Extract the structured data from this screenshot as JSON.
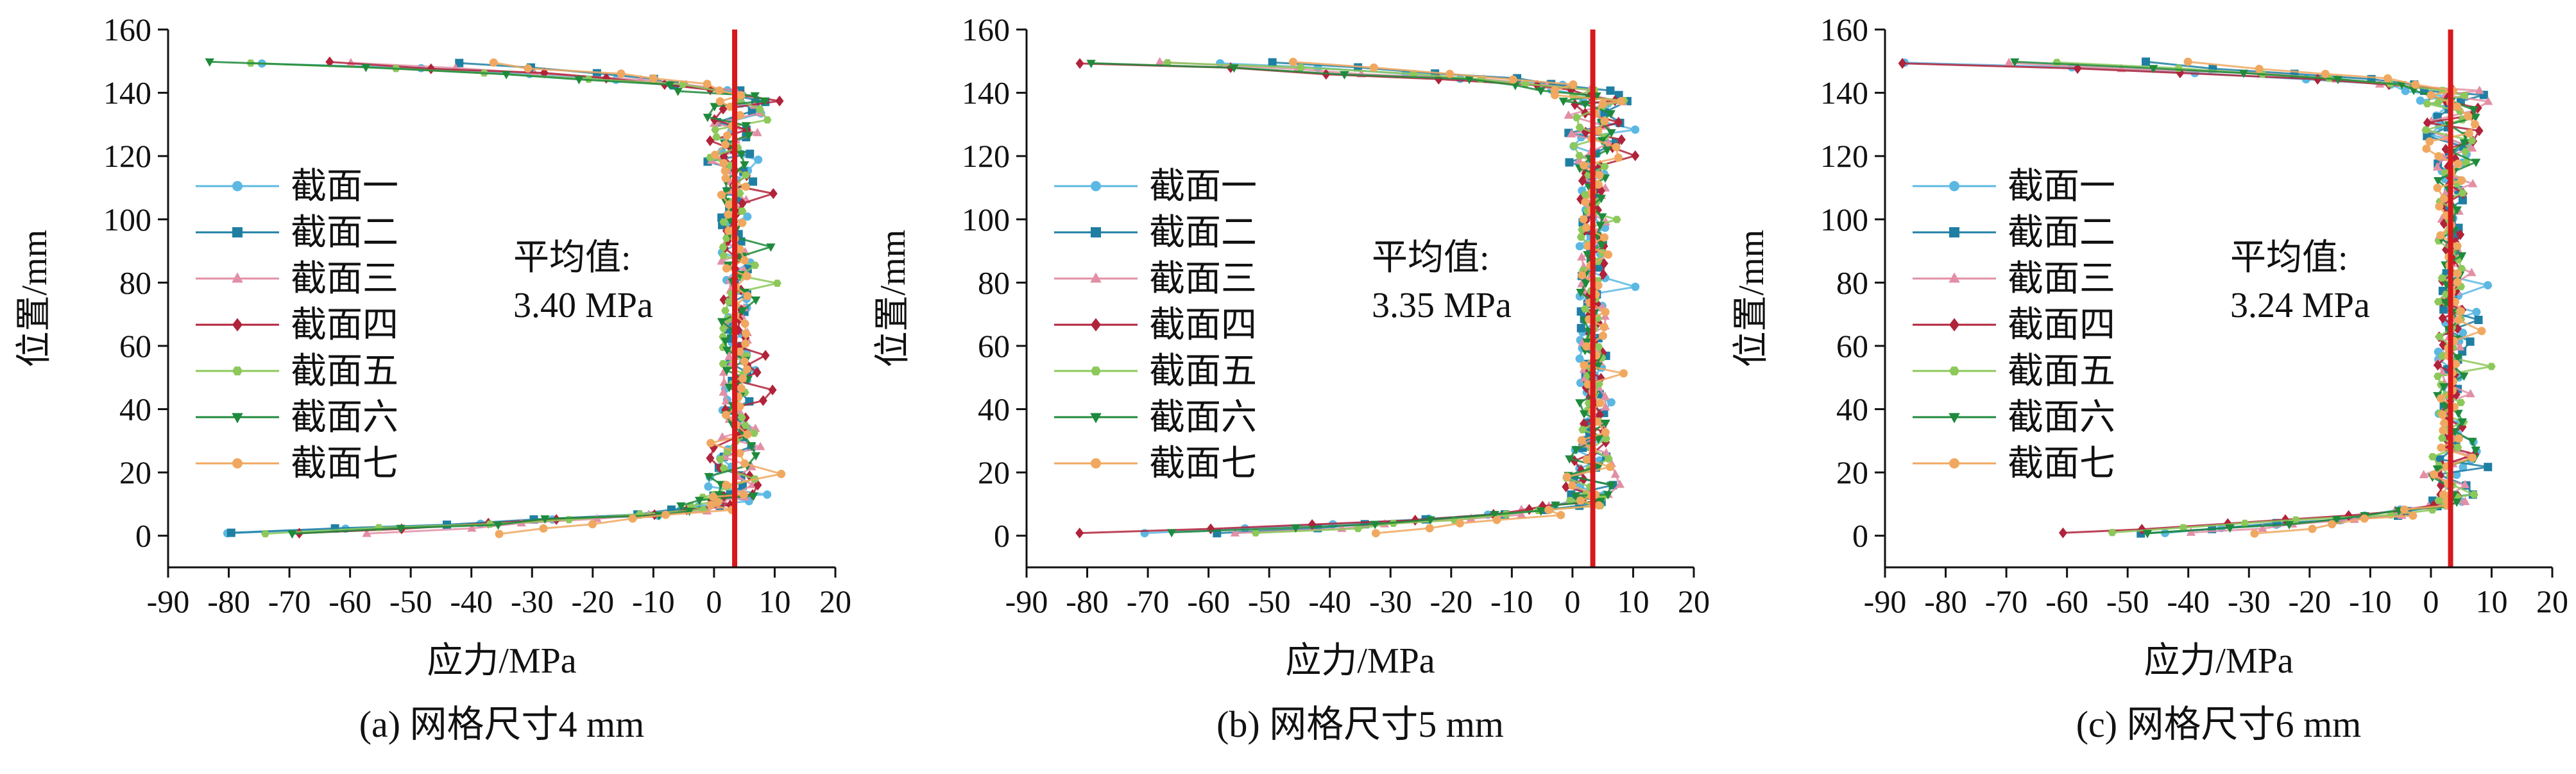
{
  "chart_data": [
    {
      "type": "scatter",
      "caption": "(a) 网格尺寸4 mm",
      "xlabel": "应力/MPa",
      "ylabel": "位置/mm",
      "xlim": [
        -90,
        20
      ],
      "ylim": [
        -10,
        160
      ],
      "xticks": [
        -90,
        -80,
        -70,
        -60,
        -50,
        -40,
        -30,
        -20,
        -10,
        0,
        10,
        20
      ],
      "yticks": [
        0,
        20,
        40,
        60,
        80,
        100,
        120,
        140,
        160
      ],
      "annotation": {
        "line1": "平均值:",
        "line2": "3.40 MPa"
      },
      "mean_line": 3.4,
      "legend_position": "left",
      "series": [
        {
          "name": "截面一",
          "color": "#5bb8e3",
          "marker": "circle"
        },
        {
          "name": "截面二",
          "color": "#1f7fa3",
          "marker": "square"
        },
        {
          "name": "截面三",
          "color": "#e28fa6",
          "marker": "triangle"
        },
        {
          "name": "截面四",
          "color": "#b0233a",
          "marker": "diamond"
        },
        {
          "name": "截面五",
          "color": "#8cc85a",
          "marker": "hexagon"
        },
        {
          "name": "截面六",
          "color": "#1e8a3c",
          "marker": "triangle-down"
        },
        {
          "name": "截面七",
          "color": "#f0a860",
          "marker": "circle"
        }
      ],
      "top_edge_min_stress": [
        -75,
        -42,
        -60,
        -62,
        -78,
        -80,
        -40
      ],
      "bottom_edge_min_stress": [
        -78,
        -82,
        -55,
        -68,
        -72,
        -70,
        -38
      ]
    },
    {
      "type": "scatter",
      "caption": "(b) 网格尺寸5 mm",
      "xlabel": "应力/MPa",
      "ylabel": "位置/mm",
      "xlim": [
        -90,
        20
      ],
      "ylim": [
        -10,
        160
      ],
      "xticks": [
        -90,
        -80,
        -70,
        -60,
        -50,
        -40,
        -30,
        -20,
        -10,
        0,
        10,
        20
      ],
      "yticks": [
        0,
        20,
        40,
        60,
        80,
        100,
        120,
        140,
        160
      ],
      "annotation": {
        "line1": "平均值:",
        "line2": "3.35 MPa"
      },
      "mean_line": 3.35,
      "legend_position": "left",
      "series": [
        {
          "name": "截面一",
          "color": "#5bb8e3",
          "marker": "circle"
        },
        {
          "name": "截面二",
          "color": "#1f7fa3",
          "marker": "square"
        },
        {
          "name": "截面三",
          "color": "#e28fa6",
          "marker": "triangle"
        },
        {
          "name": "截面四",
          "color": "#b0233a",
          "marker": "diamond"
        },
        {
          "name": "截面五",
          "color": "#8cc85a",
          "marker": "hexagon"
        },
        {
          "name": "截面六",
          "color": "#1e8a3c",
          "marker": "triangle-down"
        },
        {
          "name": "截面七",
          "color": "#f0a860",
          "marker": "circle"
        }
      ],
      "top_edge_min_stress": [
        -60,
        -50,
        -70,
        -84,
        -65,
        -76,
        -45
      ],
      "bottom_edge_min_stress": [
        -70,
        -60,
        -55,
        -80,
        -50,
        -65,
        -30
      ]
    },
    {
      "type": "scatter",
      "caption": "(c) 网格尺寸6 mm",
      "xlabel": "应力/MPa",
      "ylabel": "位置/mm",
      "xlim": [
        -90,
        20
      ],
      "ylim": [
        -10,
        160
      ],
      "xticks": [
        -90,
        -80,
        -70,
        -60,
        -50,
        -40,
        -30,
        -20,
        -10,
        0,
        10,
        20
      ],
      "yticks": [
        0,
        20,
        40,
        60,
        80,
        100,
        120,
        140,
        160
      ],
      "annotation": {
        "line1": "平均值:",
        "line2": "3.24 MPa"
      },
      "mean_line": 3.24,
      "legend_position": "left",
      "series": [
        {
          "name": "截面一",
          "color": "#5bb8e3",
          "marker": "circle"
        },
        {
          "name": "截面二",
          "color": "#1f7fa3",
          "marker": "square"
        },
        {
          "name": "截面三",
          "color": "#e28fa6",
          "marker": "triangle"
        },
        {
          "name": "截面四",
          "color": "#b0233a",
          "marker": "diamond"
        },
        {
          "name": "截面五",
          "color": "#8cc85a",
          "marker": "hexagon"
        },
        {
          "name": "截面六",
          "color": "#1e8a3c",
          "marker": "triangle-down"
        },
        {
          "name": "截面七",
          "color": "#f0a860",
          "marker": "circle"
        }
      ],
      "top_edge_min_stress": [
        -90,
        -50,
        -70,
        -84,
        -65,
        -72,
        -40
      ],
      "bottom_edge_min_stress": [
        -45,
        -50,
        -40,
        -60,
        -55,
        -48,
        -30
      ]
    }
  ],
  "mean_line_color": "#d7191c"
}
